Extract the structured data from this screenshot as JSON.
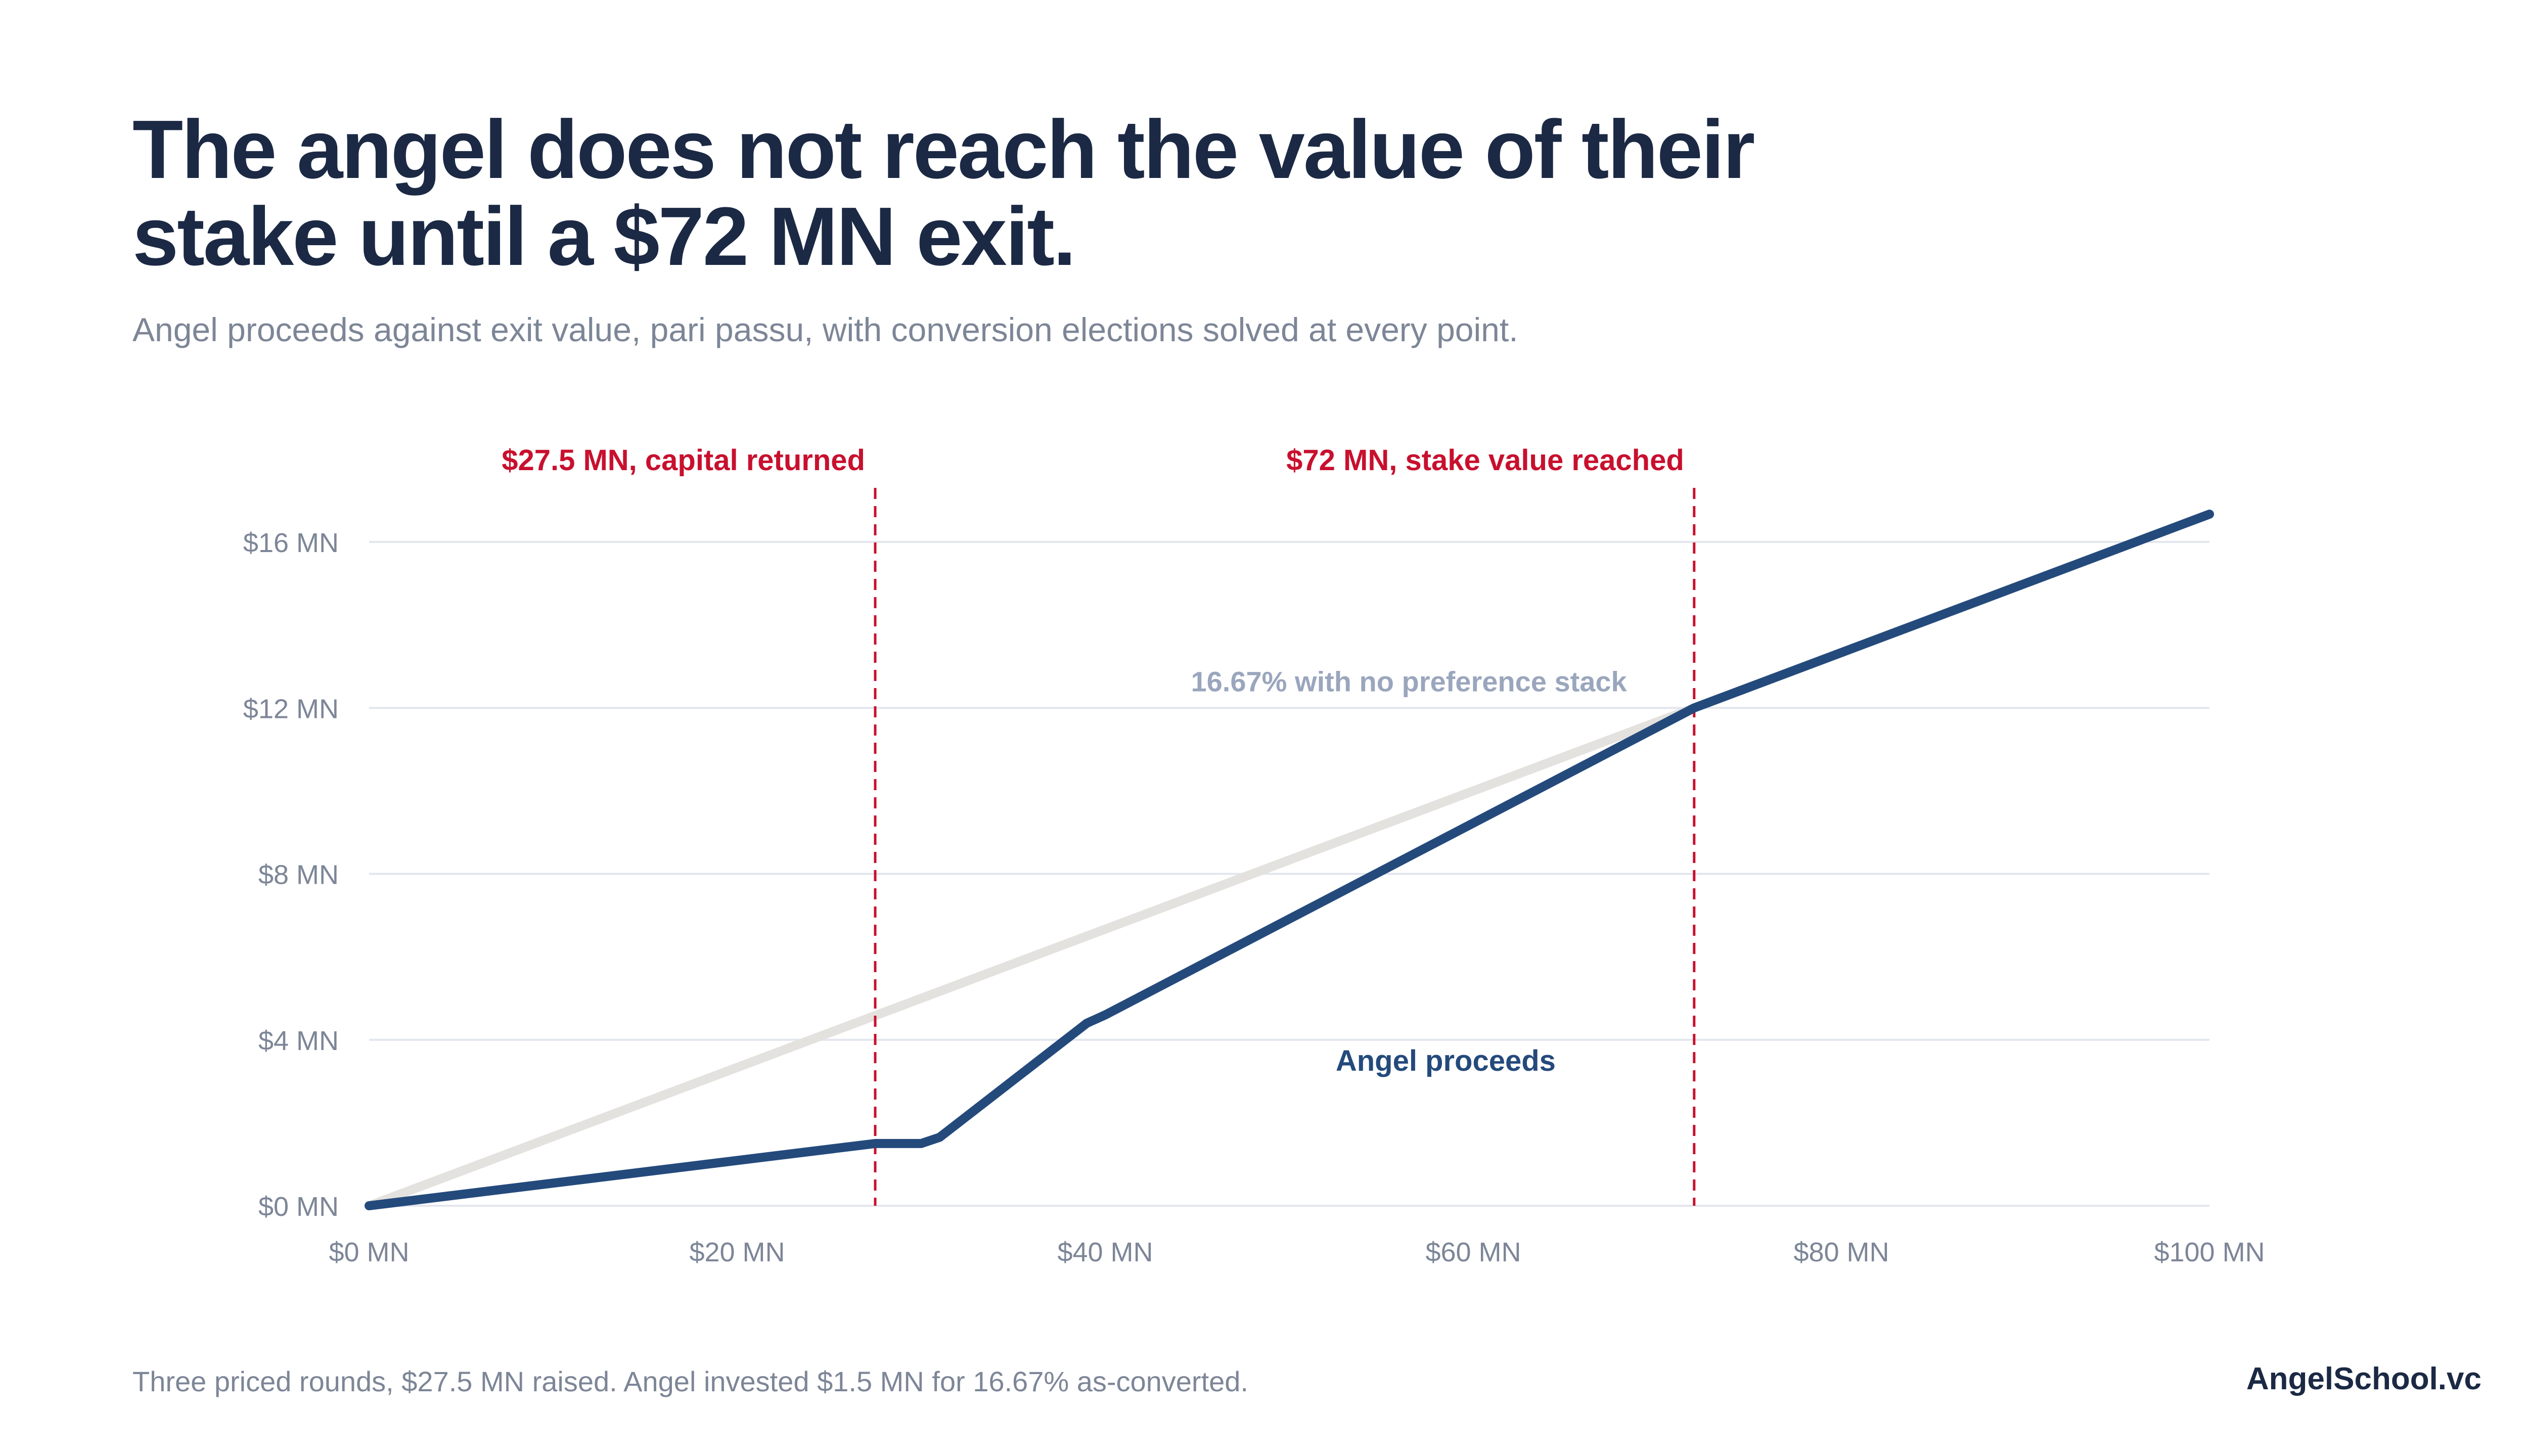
{
  "header": {
    "title_line1": "The angel does not reach the value of their",
    "title_line2": "stake until a $72 MN exit.",
    "subtitle": "Angel proceeds against exit value, pari passu, with conversion elections solved at every point."
  },
  "footer": {
    "note": "Three priced rounds, $27.5 MN raised. Angel invested $1.5 MN for 16.67% as-converted.",
    "brand": "AngelSchool.vc"
  },
  "colors": {
    "angel_line": "#244a7c",
    "reference_line": "#e4e2de",
    "marker": "#c8102e",
    "grid": "#e3e6ee",
    "tick_text": "#7d8697",
    "reference_label": "#9aa6bd"
  },
  "chart_data": {
    "type": "line",
    "title": "The angel does not reach the value of their stake until a $72 MN exit.",
    "xlabel": "",
    "ylabel": "",
    "xlim": [
      0,
      100
    ],
    "ylim": [
      0,
      16
    ],
    "x_ticks": [
      0,
      20,
      40,
      60,
      80,
      100
    ],
    "x_tick_labels": [
      "$0 MN",
      "$20 MN",
      "$40 MN",
      "$60 MN",
      "$80 MN",
      "$100 MN"
    ],
    "y_ticks": [
      0,
      4,
      8,
      12,
      16
    ],
    "y_tick_labels": [
      "$0 MN",
      "$4 MN",
      "$8 MN",
      "$12 MN",
      "$16 MN"
    ],
    "grid": "horizontal",
    "legend": "none",
    "series": [
      {
        "name": "Angel proceeds",
        "points": [
          [
            0,
            0
          ],
          [
            27.5,
            1.5
          ],
          [
            30,
            1.5
          ],
          [
            31,
            1.65
          ],
          [
            39,
            4.4
          ],
          [
            40,
            4.6
          ],
          [
            72,
            12.0
          ],
          [
            100,
            16.67
          ]
        ]
      },
      {
        "name": "16.67% with no preference stack",
        "points": [
          [
            0,
            0
          ],
          [
            72,
            12.0
          ]
        ]
      }
    ],
    "annotations": [
      {
        "x": 27.5,
        "label": "$27.5 MN, capital returned"
      },
      {
        "x": 72,
        "label": "$72 MN, stake value reached"
      }
    ]
  }
}
